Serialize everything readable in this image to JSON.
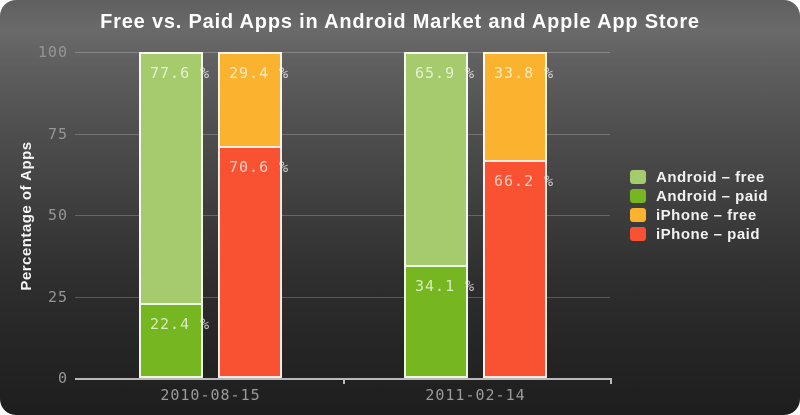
{
  "title": "Free vs. Paid Apps in Android Market and Apple App Store",
  "y_axis": {
    "label": "Percentage of Apps",
    "ticks": [
      100,
      75,
      50,
      25,
      0
    ]
  },
  "x_axis": {
    "categories": [
      "2010-08-15",
      "2011-02-14"
    ]
  },
  "legend": {
    "position": "right",
    "items": [
      {
        "label": "Android – free",
        "color": "#a6cb6d"
      },
      {
        "label": "Android – paid",
        "color": "#76b621"
      },
      {
        "label": "iPhone – free",
        "color": "#fbb32f"
      },
      {
        "label": "iPhone – paid",
        "color": "#f95233"
      }
    ]
  },
  "chart_data": {
    "type": "bar",
    "stacked": true,
    "percent": true,
    "title": "Free vs. Paid Apps in Android Market and Apple App Store",
    "xlabel": "",
    "ylabel": "Percentage of Apps",
    "ylim": [
      0,
      100
    ],
    "grid": "horizontal",
    "legend_position": "right",
    "categories": [
      "2010-08-15",
      "2011-02-14"
    ],
    "series": [
      {
        "name": "Android – free",
        "platform": "android",
        "kind": "free",
        "color": "#a6cb6d",
        "values": [
          77.6,
          65.9
        ],
        "labels": [
          "77.6 %",
          "65.9 %"
        ]
      },
      {
        "name": "Android – paid",
        "platform": "android",
        "kind": "paid",
        "color": "#76b621",
        "values": [
          22.4,
          34.1
        ],
        "labels": [
          "22.4 %",
          "34.1 %"
        ]
      },
      {
        "name": "iPhone – free",
        "platform": "iphone",
        "kind": "free",
        "color": "#fbb32f",
        "values": [
          29.4,
          33.8
        ],
        "labels": [
          "29.4 %",
          "33.8 %"
        ]
      },
      {
        "name": "iPhone – paid",
        "platform": "iphone",
        "kind": "paid",
        "color": "#f95233",
        "values": [
          70.6,
          66.2
        ],
        "labels": [
          "70.6 %",
          "66.2 %"
        ]
      }
    ]
  },
  "colors": {
    "axis": "#b9b9b9",
    "gridline": "rgba(255,255,255,0.22)",
    "tick_label": "#969696",
    "segment_label": "rgba(255,255,255,0.72)",
    "title_text": "#ffffff",
    "background_top": "#6a6a6a",
    "background_bottom": "#1e1e1e"
  }
}
